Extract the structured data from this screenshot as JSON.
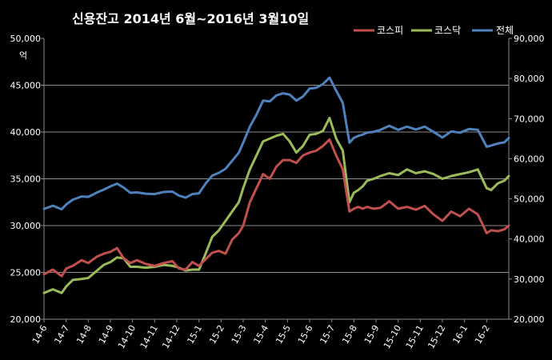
{
  "chart_data": {
    "type": "line",
    "title": "신용잔고 2014년 6월~2016년 3월10일",
    "ylabel_left": "50,000\n억",
    "ylim_left": [
      20000,
      50000
    ],
    "ylim_right": [
      20000,
      90000
    ],
    "yticks_left": [
      "20,000",
      "25,000",
      "30,000",
      "35,000",
      "40,000",
      "45,000",
      "50,000"
    ],
    "yticks_right": [
      "20,000",
      "30,000",
      "40,000",
      "50,000",
      "60,000",
      "70,000",
      "80,000",
      "90,000"
    ],
    "y_unit": "억",
    "grid": true,
    "legend_position": "top-right",
    "categories": [
      "14-6",
      "14-7",
      "14-8",
      "14-9",
      "14-10",
      "14-11",
      "14-12",
      "15-1",
      "15-2",
      "15-3",
      "15-4",
      "15-5",
      "15-6",
      "15-7",
      "15-8",
      "15-9",
      "15-10",
      "15-11",
      "15-12",
      "16-1",
      "16-2"
    ],
    "series": [
      {
        "name": "코스피",
        "color": "#c0504d",
        "axis": "left",
        "x": [
          0,
          0.4,
          0.8,
          1.0,
          1.3,
          1.7,
          2.0,
          2.4,
          2.7,
          3.0,
          3.3,
          3.6,
          3.9,
          4.2,
          4.6,
          5.0,
          5.4,
          5.8,
          6.1,
          6.4,
          6.7,
          7.0,
          7.3,
          7.6,
          7.9,
          8.2,
          8.5,
          8.8,
          9.0,
          9.3,
          9.6,
          9.9,
          10.2,
          10.5,
          10.8,
          11.1,
          11.4,
          11.7,
          12.0,
          12.3,
          12.6,
          12.9,
          13.2,
          13.5,
          13.8,
          14.0,
          14.2,
          14.4,
          14.6,
          14.9,
          15.2,
          15.6,
          16.0,
          16.4,
          16.8,
          17.2,
          17.6,
          18.0,
          18.4,
          18.8,
          19.2,
          19.6,
          20.0,
          20.2,
          20.5,
          20.8,
          21.0
        ],
        "values": [
          24800,
          25300,
          24600,
          25400,
          25700,
          26300,
          26000,
          26700,
          27000,
          27200,
          27600,
          26500,
          26000,
          26300,
          25900,
          25700,
          26000,
          26200,
          25400,
          25300,
          26100,
          25700,
          26400,
          27100,
          27300,
          27000,
          28500,
          29200,
          30000,
          32500,
          34000,
          35500,
          35000,
          36300,
          37000,
          37000,
          36700,
          37500,
          37800,
          38000,
          38500,
          39200,
          37500,
          36000,
          31500,
          31800,
          32000,
          31800,
          32000,
          31800,
          31900,
          32600,
          31800,
          32000,
          31700,
          32100,
          31200,
          30500,
          31500,
          31000,
          31800,
          31200,
          29200,
          29500,
          29400,
          29600,
          30000
        ]
      },
      {
        "name": "코스닥",
        "color": "#9bbb59",
        "axis": "left",
        "x": [
          0,
          0.4,
          0.8,
          1.0,
          1.3,
          1.7,
          2.0,
          2.4,
          2.7,
          3.0,
          3.3,
          3.6,
          3.9,
          4.2,
          4.6,
          5.0,
          5.4,
          5.8,
          6.1,
          6.4,
          6.7,
          7.0,
          7.3,
          7.6,
          7.9,
          8.2,
          8.5,
          8.8,
          9.0,
          9.3,
          9.6,
          9.9,
          10.2,
          10.5,
          10.8,
          11.1,
          11.4,
          11.7,
          12.0,
          12.3,
          12.6,
          12.9,
          13.2,
          13.5,
          13.8,
          14.0,
          14.2,
          14.4,
          14.6,
          14.9,
          15.2,
          15.6,
          16.0,
          16.4,
          16.8,
          17.2,
          17.6,
          18.0,
          18.4,
          18.8,
          19.2,
          19.6,
          20.0,
          20.2,
          20.5,
          20.8,
          21.0
        ],
        "values": [
          22800,
          23200,
          22800,
          23500,
          24200,
          24300,
          24400,
          25200,
          25800,
          26100,
          26600,
          26500,
          25600,
          25600,
          25500,
          25600,
          25800,
          25700,
          25500,
          25200,
          25300,
          25300,
          27000,
          28800,
          29500,
          30500,
          31500,
          32500,
          34000,
          36000,
          37500,
          39000,
          39300,
          39600,
          39800,
          39000,
          37800,
          38500,
          39700,
          39800,
          40100,
          41500,
          39300,
          38000,
          32500,
          33500,
          33800,
          34200,
          34800,
          35000,
          35300,
          35600,
          35400,
          36000,
          35600,
          35800,
          35500,
          35000,
          35300,
          35500,
          35700,
          36000,
          34000,
          33800,
          34500,
          34800,
          35300
        ]
      },
      {
        "name": "전체",
        "color": "#4f81bd",
        "axis": "right",
        "x": [
          0,
          0.4,
          0.8,
          1.0,
          1.3,
          1.7,
          2.0,
          2.4,
          2.7,
          3.0,
          3.3,
          3.6,
          3.9,
          4.2,
          4.6,
          5.0,
          5.4,
          5.8,
          6.1,
          6.4,
          6.7,
          7.0,
          7.3,
          7.6,
          7.9,
          8.2,
          8.5,
          8.8,
          9.0,
          9.3,
          9.6,
          9.9,
          10.2,
          10.5,
          10.8,
          11.1,
          11.4,
          11.7,
          12.0,
          12.3,
          12.6,
          12.9,
          13.2,
          13.5,
          13.8,
          14.0,
          14.2,
          14.4,
          14.6,
          14.9,
          15.2,
          15.6,
          16.0,
          16.4,
          16.8,
          17.2,
          17.6,
          18.0,
          18.4,
          18.8,
          19.2,
          19.6,
          20.0,
          20.2,
          20.5,
          20.8,
          21.0
        ],
        "values": [
          47500,
          48300,
          47400,
          48600,
          49800,
          50600,
          50500,
          51600,
          52300,
          53100,
          53800,
          52800,
          51500,
          51600,
          51300,
          51200,
          51700,
          51800,
          50800,
          50300,
          51200,
          51400,
          53800,
          55800,
          56500,
          57500,
          59500,
          61500,
          64000,
          68000,
          71000,
          74500,
          74300,
          75800,
          76300,
          76000,
          74500,
          75500,
          77500,
          77700,
          78600,
          80200,
          77000,
          73900,
          64000,
          65200,
          65700,
          66000,
          66500,
          66700,
          67200,
          68200,
          67200,
          68000,
          67300,
          68000,
          66700,
          65300,
          66800,
          66500,
          67400,
          67200,
          63000,
          63300,
          63800,
          64100,
          65200
        ]
      }
    ]
  }
}
